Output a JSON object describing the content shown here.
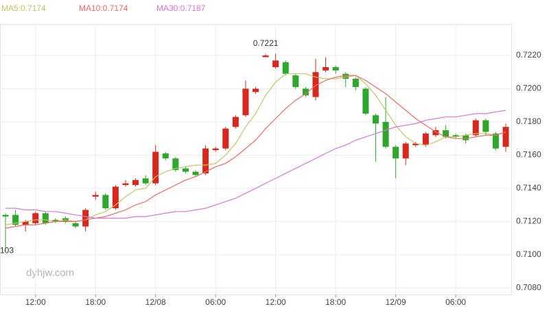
{
  "chart_data": {
    "type": "candlestick",
    "categories": [
      null,
      null,
      null,
      "12:00",
      null,
      null,
      null,
      null,
      null,
      "18:00",
      null,
      null,
      null,
      null,
      null,
      "12/08",
      null,
      null,
      null,
      null,
      null,
      "06:00",
      null,
      null,
      null,
      null,
      null,
      "12:00",
      null,
      null,
      null,
      null,
      null,
      "18:00",
      null,
      null,
      null,
      null,
      null,
      "12/09",
      null,
      null,
      null,
      null,
      null,
      "06:00",
      null,
      null,
      null,
      null,
      null
    ],
    "open": [
      0.7124,
      0.7124,
      0.7118,
      0.7119,
      0.7125,
      0.7121,
      0.7122,
      0.7119,
      0.7117,
      0.7135,
      0.7136,
      0.7128,
      0.7142,
      0.7142,
      0.7146,
      0.7143,
      0.7161,
      0.7158,
      0.7152,
      0.715,
      0.7149,
      0.7163,
      0.7164,
      0.7177,
      0.7184,
      0.7198,
      0.7219,
      0.7213,
      0.7216,
      0.7208,
      0.72,
      0.7195,
      0.7211,
      0.7213,
      0.7209,
      0.7206,
      0.72,
      0.7184,
      0.718,
      0.7165,
      0.7158,
      0.7166,
      0.7166,
      0.7172,
      0.7175,
      0.7172,
      0.7172,
      0.7172,
      0.7181,
      0.7173,
      0.7165
    ],
    "high": [
      0.7125,
      0.7127,
      0.7121,
      0.7126,
      0.7126,
      0.7122,
      0.7123,
      0.712,
      0.7128,
      0.7138,
      0.7137,
      0.7142,
      0.7145,
      0.7146,
      0.7148,
      0.7166,
      0.7162,
      0.7159,
      0.7153,
      0.7151,
      0.7166,
      0.7165,
      0.7177,
      0.7184,
      0.7205,
      0.7201,
      0.7221,
      0.7221,
      0.7217,
      0.7209,
      0.7201,
      0.7218,
      0.7219,
      0.7214,
      0.721,
      0.7207,
      0.7201,
      0.7185,
      0.7195,
      0.7166,
      0.7168,
      0.7168,
      0.7174,
      0.7177,
      0.7178,
      0.7173,
      0.7173,
      0.7182,
      0.7182,
      0.7174,
      0.7179
    ],
    "low": [
      0.7103,
      0.7117,
      0.7114,
      0.7118,
      0.7118,
      0.7119,
      0.7119,
      0.7116,
      0.7114,
      0.7133,
      0.7127,
      0.7127,
      0.7141,
      0.7141,
      0.7142,
      0.7142,
      0.7157,
      0.715,
      0.7149,
      0.7147,
      0.7148,
      0.7162,
      0.7163,
      0.7176,
      0.7183,
      0.7197,
      0.7219,
      0.7212,
      0.7208,
      0.72,
      0.7195,
      0.7193,
      0.721,
      0.7209,
      0.7201,
      0.7199,
      0.7184,
      0.7156,
      0.7164,
      0.7146,
      0.7154,
      0.7165,
      0.7165,
      0.7171,
      0.717,
      0.717,
      0.7167,
      0.7171,
      0.7172,
      0.7163,
      0.7162
    ],
    "close": [
      0.7123,
      0.7118,
      0.712,
      0.7125,
      0.7119,
      0.712,
      0.712,
      0.7117,
      0.7127,
      0.7136,
      0.7128,
      0.7141,
      0.7143,
      0.7145,
      0.7143,
      0.7162,
      0.7158,
      0.7151,
      0.715,
      0.7148,
      0.7164,
      0.7164,
      0.7176,
      0.7183,
      0.72,
      0.72,
      0.722,
      0.7217,
      0.7209,
      0.7201,
      0.7196,
      0.721,
      0.7213,
      0.7211,
      0.7206,
      0.7201,
      0.7185,
      0.7179,
      0.7165,
      0.7158,
      0.7167,
      0.7167,
      0.7173,
      0.7175,
      0.7171,
      0.7171,
      0.7169,
      0.7181,
      0.7174,
      0.7164,
      0.7177
    ],
    "up_color": "#d8281e",
    "down_color": "#2ea82c",
    "series": [
      {
        "name": "MA5:0.7174",
        "color": "#c3c46a",
        "values": [
          0.7118,
          0.7119,
          0.712,
          0.7121,
          0.7121,
          0.712,
          0.7121,
          0.712,
          0.7121,
          0.7124,
          0.7126,
          0.713,
          0.7135,
          0.7139,
          0.714,
          0.7147,
          0.715,
          0.7152,
          0.7153,
          0.7154,
          0.7154,
          0.7155,
          0.716,
          0.7167,
          0.7177,
          0.7185,
          0.7196,
          0.7204,
          0.7209,
          0.7209,
          0.7209,
          0.7207,
          0.7206,
          0.7206,
          0.7207,
          0.7208,
          0.7203,
          0.7196,
          0.7187,
          0.7178,
          0.7171,
          0.7167,
          0.7166,
          0.7168,
          0.7171,
          0.7171,
          0.7172,
          0.7173,
          0.7173,
          0.7172,
          0.7174
        ]
      },
      {
        "name": "MA10:0.7174",
        "color": "#ee6b63",
        "values": [
          0.7116,
          0.7117,
          0.7118,
          0.7118,
          0.7119,
          0.712,
          0.712,
          0.712,
          0.7121,
          0.7122,
          0.7123,
          0.7125,
          0.7127,
          0.713,
          0.7132,
          0.7136,
          0.7139,
          0.7142,
          0.7145,
          0.7147,
          0.715,
          0.7153,
          0.7155,
          0.7159,
          0.7164,
          0.7169,
          0.7176,
          0.7182,
          0.7188,
          0.7193,
          0.7197,
          0.7202,
          0.7205,
          0.7207,
          0.7208,
          0.7208,
          0.7205,
          0.7201,
          0.7197,
          0.7192,
          0.7187,
          0.7182,
          0.7178,
          0.7174,
          0.7171,
          0.717,
          0.717,
          0.7171,
          0.7172,
          0.7172,
          0.7174
        ]
      },
      {
        "name": "MA30:0.7187",
        "color": "#d477d6",
        "values": [
          0.7128,
          0.7128,
          0.7127,
          0.7127,
          0.7126,
          0.7126,
          0.7125,
          0.7124,
          0.7123,
          0.7122,
          0.7122,
          0.7122,
          0.7122,
          0.7123,
          0.7123,
          0.7124,
          0.7125,
          0.7126,
          0.7126,
          0.7127,
          0.7128,
          0.713,
          0.7132,
          0.7134,
          0.7137,
          0.714,
          0.7143,
          0.7146,
          0.7149,
          0.7152,
          0.7155,
          0.7158,
          0.7161,
          0.7164,
          0.7166,
          0.7169,
          0.7171,
          0.7173,
          0.7175,
          0.7177,
          0.7178,
          0.7179,
          0.7181,
          0.7182,
          0.7183,
          0.7183,
          0.7184,
          0.7185,
          0.7185,
          0.7186,
          0.7187
        ]
      }
    ],
    "ylim": [
      0.7076,
      0.7239
    ],
    "yticks": [
      {
        "value": 0.708,
        "label": "0.7080"
      },
      {
        "value": 0.71,
        "label": "0.7100"
      },
      {
        "value": 0.712,
        "label": "0.7120"
      },
      {
        "value": 0.714,
        "label": "0.7140"
      },
      {
        "value": 0.716,
        "label": "0.7160"
      },
      {
        "value": 0.718,
        "label": "0.7180"
      },
      {
        "value": 0.72,
        "label": "0.7200"
      },
      {
        "value": 0.722,
        "label": "0.7220"
      }
    ],
    "grid": true,
    "annotations": [
      {
        "text": "0.7221",
        "index": 26
      },
      {
        "text": "103",
        "index": 0
      }
    ],
    "watermark": "dyhjw.com"
  }
}
